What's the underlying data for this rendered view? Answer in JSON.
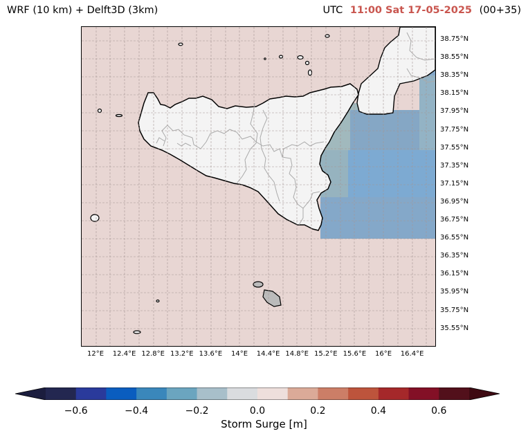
{
  "header": {
    "model_title": "WRF (10 km) + Delft3D (3km)",
    "tz_label": "UTC",
    "valid_time": "11:00 Sat 17-05-2025",
    "lead_time": "(00+35)"
  },
  "map": {
    "lat_labels": [
      "38.75°N",
      "38.55°N",
      "38.35°N",
      "38.15°N",
      "37.95°N",
      "37.75°N",
      "37.55°N",
      "37.35°N",
      "37.15°N",
      "36.95°N",
      "36.75°N",
      "36.55°N",
      "36.35°N",
      "36.15°N",
      "35.95°N",
      "35.75°N",
      "35.55°N"
    ],
    "lon_labels": [
      "12°E",
      "12.4°E",
      "12.8°E",
      "13.2°E",
      "13.6°E",
      "14°E",
      "14.4°E",
      "14.8°E",
      "15.2°E",
      "15.6°E",
      "16°E",
      "16.4°E"
    ],
    "colors": {
      "sea_background": "#e8d6d3",
      "land": "#f4f4f4",
      "coastline": "#000000",
      "borders": "#aaaaaa",
      "grid": "#b0a0a0",
      "surge_negative_strong": "#72a6d2",
      "surge_negative_mid": "#7ba3c4",
      "surge_negative_weak": "#9ab6bb"
    }
  },
  "colorbar": {
    "label": "Storm Surge [m]",
    "tick_labels": [
      "−0.6",
      "−0.4",
      "−0.2",
      "0.0",
      "0.2",
      "0.4",
      "0.6"
    ],
    "colors": [
      "#232750",
      "#2a3a9b",
      "#0a5dbf",
      "#3a87bb",
      "#6ba5bf",
      "#a8bfca",
      "#dadcdf",
      "#eedfdc",
      "#dbaa98",
      "#cc7e67",
      "#bd543c",
      "#a5282a",
      "#831026",
      "#52101b"
    ],
    "extend_min_color": "#1b1d3e",
    "extend_max_color": "#3e0a12"
  }
}
